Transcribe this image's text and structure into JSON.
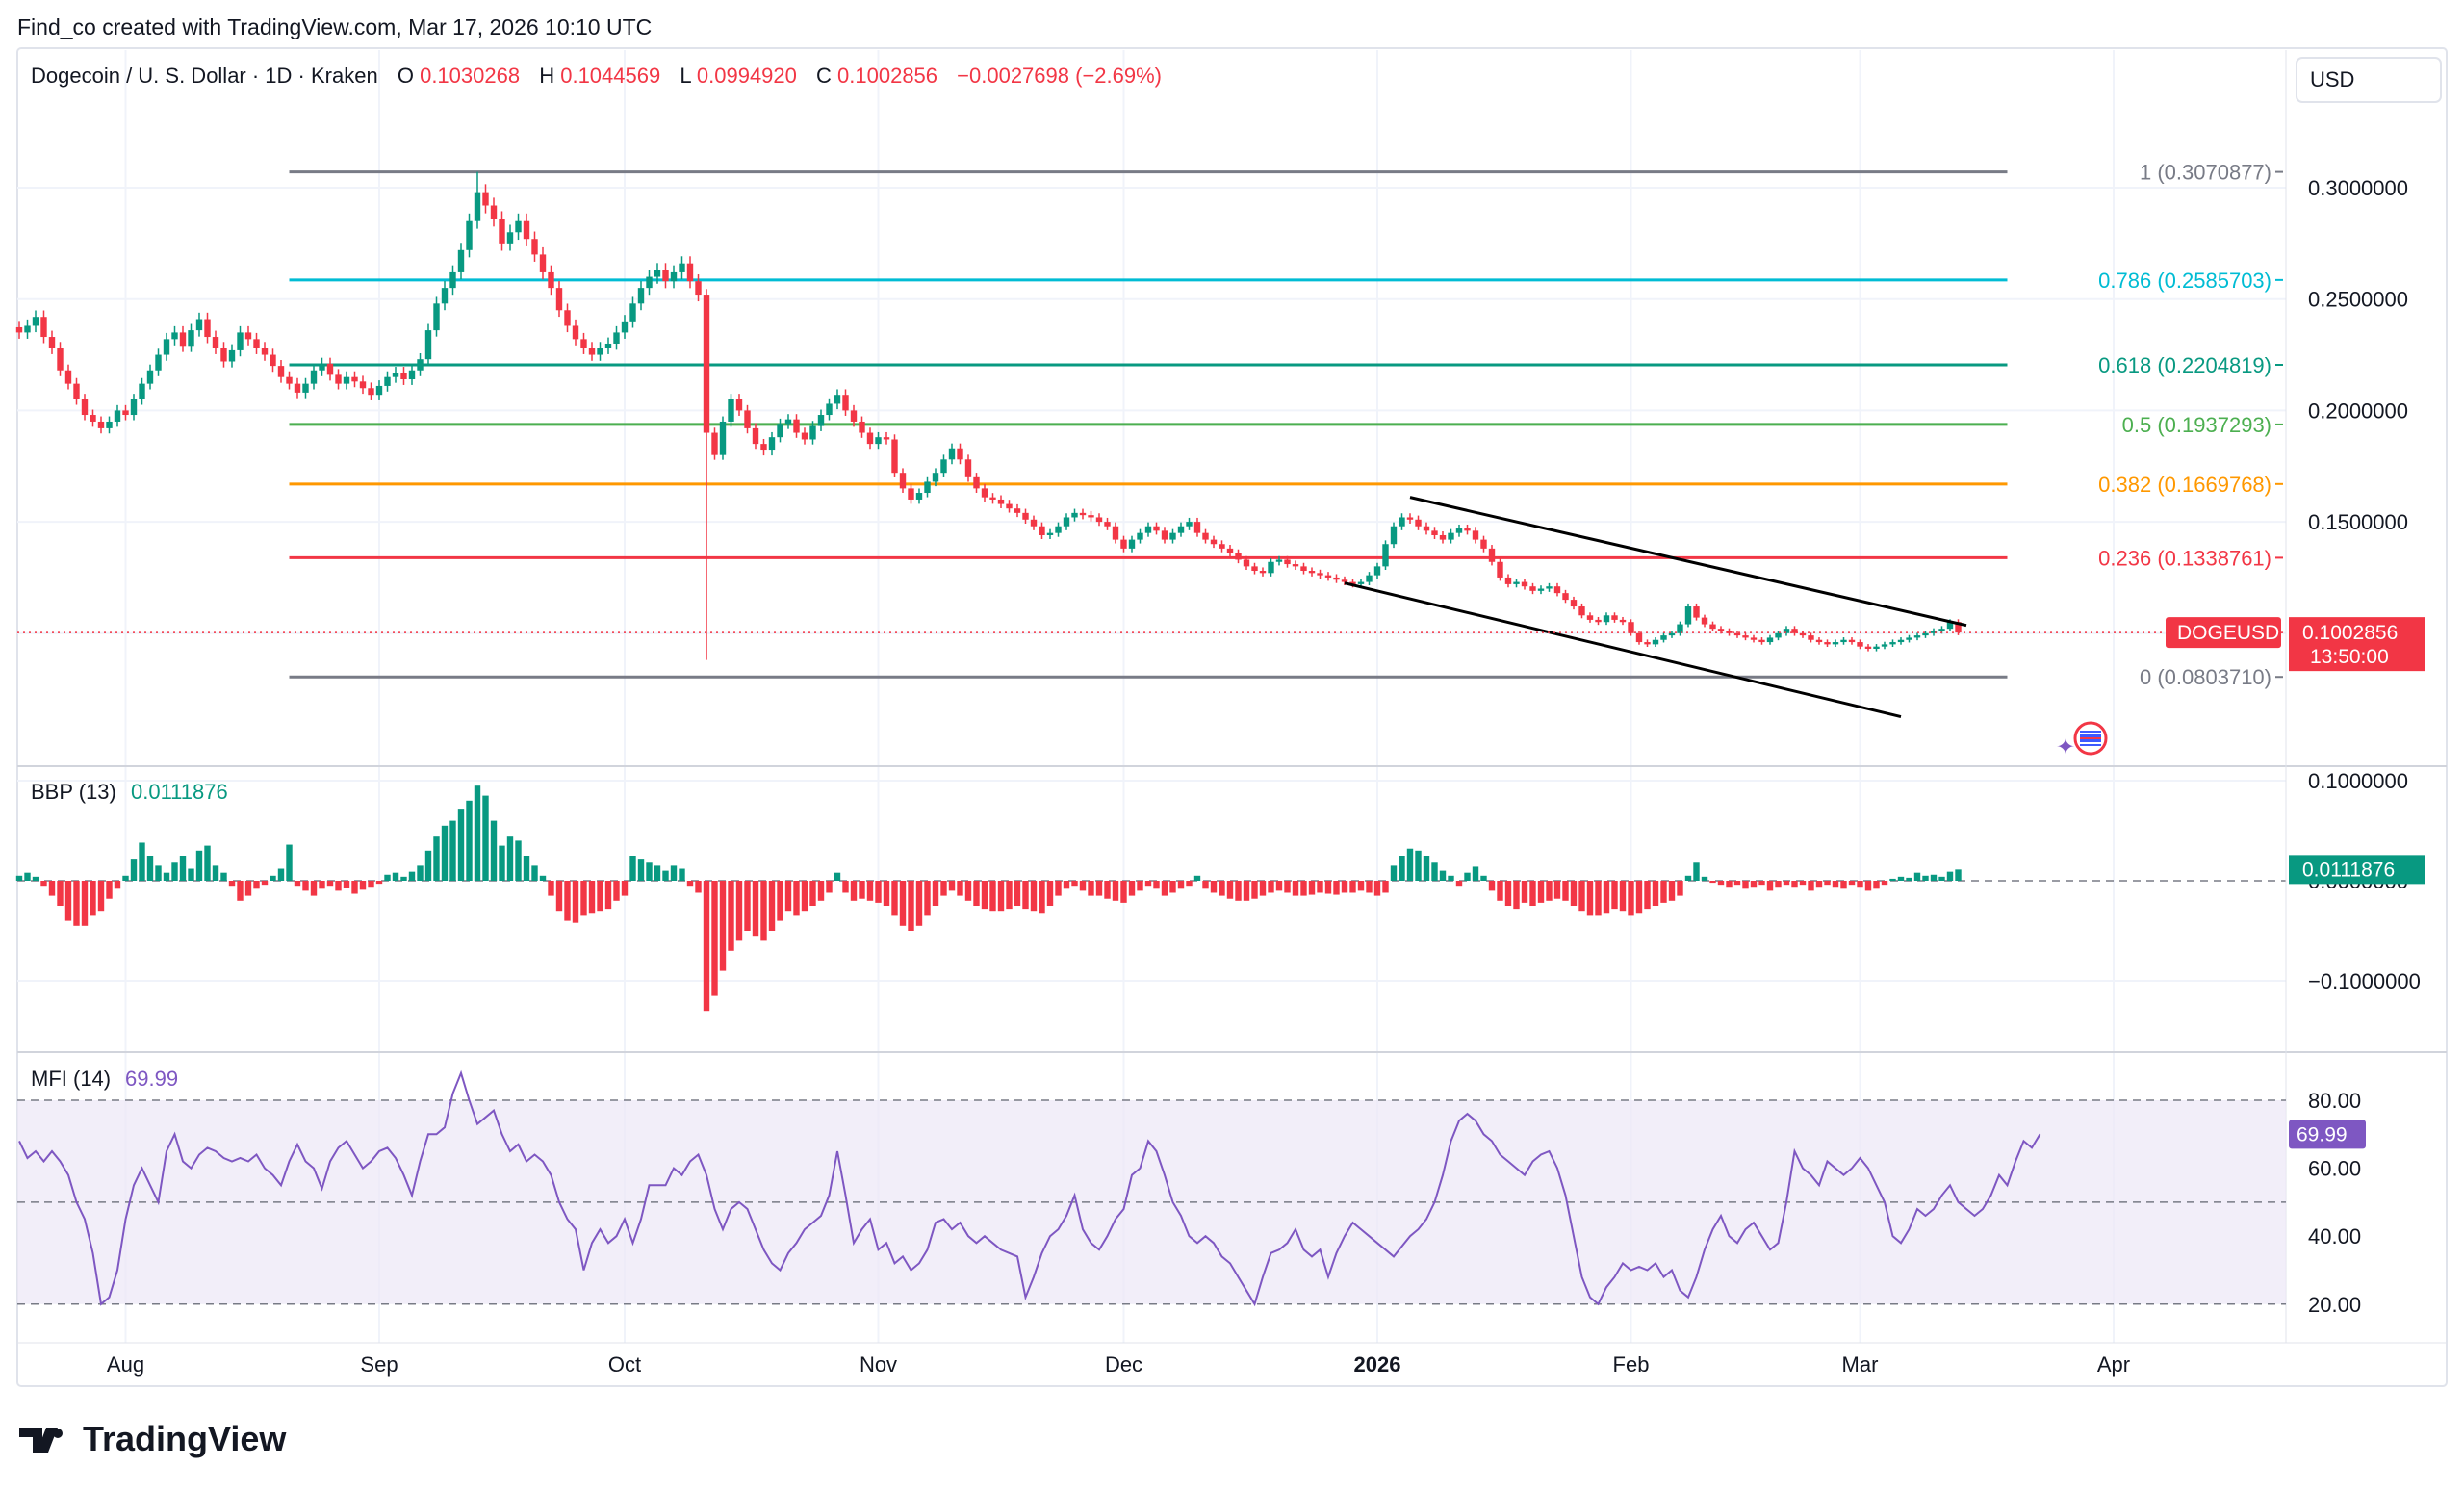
{
  "header_text": "Find_co created with TradingView.com, Mar 17, 2026 10:10 UTC",
  "legend": {
    "symbol": "Dogecoin / U. S. Dollar · 1D · Kraken",
    "o_label": "O",
    "o_value": "0.1030268",
    "h_label": "H",
    "h_value": "0.1044569",
    "l_label": "L",
    "l_value": "0.0994920",
    "c_label": "C",
    "c_value": "0.1002856",
    "change": "−0.0027698 (−2.69%)"
  },
  "currency_button": "USD",
  "footer_logo": "TradingView",
  "colors": {
    "up": "#089981",
    "down": "#f23645",
    "grid": "#f0f3fa",
    "text": "#131722",
    "mfi": "#7e57c2",
    "mfi_band": "#ede7f6",
    "fib_0": "#787b86",
    "fib_236": "#f23645",
    "fib_382": "#ff9800",
    "fib_5": "#4caf50",
    "fib_618": "#089981",
    "fib_786": "#00bcd4",
    "fib_1": "#787b86"
  },
  "chart_data": [
    {
      "type": "candlestick",
      "title": "Dogecoin / U. S. Dollar · 1D · Kraken",
      "x_labels": [
        "Aug",
        "Sep",
        "Oct",
        "Nov",
        "Dec",
        "2026",
        "Feb",
        "Mar",
        "Apr"
      ],
      "y_ticks": [
        "0.3000000",
        "0.2500000",
        "0.2000000",
        "0.1500000"
      ],
      "ylim": [
        0.06,
        0.33
      ],
      "last_price_label": "DOGEUSD",
      "last_price": "0.1002856",
      "countdown": "13:50:00",
      "fibonacci": [
        {
          "label": "1 (0.3070877)",
          "value": 0.3070877
        },
        {
          "label": "0.786 (0.2585703)",
          "value": 0.2585703
        },
        {
          "label": "0.618 (0.2204819)",
          "value": 0.2204819
        },
        {
          "label": "0.5 (0.1937293)",
          "value": 0.1937293
        },
        {
          "label": "0.382 (0.1669768)",
          "value": 0.1669768
        },
        {
          "label": "0.236 (0.1338761)",
          "value": 0.1338761
        },
        {
          "label": "0 (0.0803710)",
          "value": 0.080371
        }
      ],
      "channel": [
        {
          "from": [
            "2026-01-05",
            0.161
          ],
          "to": [
            "2026-03-14",
            0.1035
          ]
        },
        {
          "from": [
            "2025-12-28",
            0.1225
          ],
          "to": [
            "2026-03-06",
            0.0625
          ]
        }
      ],
      "close_series": [
        0.235,
        0.238,
        0.242,
        0.233,
        0.228,
        0.218,
        0.212,
        0.205,
        0.198,
        0.195,
        0.192,
        0.195,
        0.2,
        0.198,
        0.205,
        0.212,
        0.218,
        0.225,
        0.232,
        0.235,
        0.229,
        0.236,
        0.241,
        0.233,
        0.228,
        0.222,
        0.227,
        0.235,
        0.232,
        0.228,
        0.225,
        0.22,
        0.215,
        0.212,
        0.208,
        0.212,
        0.218,
        0.221,
        0.216,
        0.212,
        0.215,
        0.213,
        0.21,
        0.207,
        0.211,
        0.215,
        0.217,
        0.214,
        0.218,
        0.223,
        0.236,
        0.248,
        0.255,
        0.262,
        0.272,
        0.285,
        0.298,
        0.292,
        0.286,
        0.275,
        0.28,
        0.285,
        0.277,
        0.27,
        0.262,
        0.255,
        0.245,
        0.238,
        0.232,
        0.228,
        0.225,
        0.228,
        0.23,
        0.235,
        0.24,
        0.248,
        0.255,
        0.26,
        0.263,
        0.258,
        0.262,
        0.266,
        0.258,
        0.252,
        0.19,
        0.18,
        0.195,
        0.205,
        0.2,
        0.192,
        0.185,
        0.182,
        0.188,
        0.194,
        0.196,
        0.19,
        0.187,
        0.193,
        0.198,
        0.203,
        0.207,
        0.2,
        0.195,
        0.19,
        0.185,
        0.188,
        0.187,
        0.172,
        0.165,
        0.16,
        0.163,
        0.168,
        0.172,
        0.178,
        0.183,
        0.178,
        0.17,
        0.165,
        0.161,
        0.16,
        0.158,
        0.156,
        0.154,
        0.151,
        0.148,
        0.144,
        0.145,
        0.148,
        0.152,
        0.154,
        0.153,
        0.152,
        0.15,
        0.148,
        0.142,
        0.138,
        0.142,
        0.145,
        0.148,
        0.146,
        0.142,
        0.145,
        0.148,
        0.15,
        0.145,
        0.142,
        0.14,
        0.138,
        0.136,
        0.133,
        0.13,
        0.128,
        0.127,
        0.132,
        0.133,
        0.131,
        0.13,
        0.128,
        0.127,
        0.126,
        0.125,
        0.124,
        0.123,
        0.122,
        0.123,
        0.126,
        0.13,
        0.14,
        0.148,
        0.152,
        0.151,
        0.148,
        0.146,
        0.144,
        0.142,
        0.145,
        0.147,
        0.146,
        0.142,
        0.138,
        0.132,
        0.125,
        0.122,
        0.123,
        0.121,
        0.119,
        0.12,
        0.121,
        0.118,
        0.115,
        0.112,
        0.108,
        0.106,
        0.105,
        0.108,
        0.106,
        0.105,
        0.1,
        0.096,
        0.095,
        0.097,
        0.099,
        0.1,
        0.104,
        0.112,
        0.107,
        0.104,
        0.102,
        0.101,
        0.1,
        0.099,
        0.098,
        0.097,
        0.096,
        0.098,
        0.1,
        0.102,
        0.1,
        0.099,
        0.097,
        0.096,
        0.095,
        0.096,
        0.097,
        0.096,
        0.094,
        0.093,
        0.094,
        0.095,
        0.096,
        0.097,
        0.098,
        0.099,
        0.1,
        0.101,
        0.102,
        0.105,
        0.1003
      ]
    },
    {
      "type": "bar",
      "title": "BBP (13)",
      "value_label": "0.0111876",
      "y_ticks": [
        "0.1000000",
        "0.0000000",
        "−0.1000000"
      ],
      "ylim": [
        -0.14,
        0.12
      ],
      "values": [
        0.005,
        0.008,
        0.004,
        -0.005,
        -0.015,
        -0.025,
        -0.04,
        -0.045,
        -0.045,
        -0.035,
        -0.03,
        -0.018,
        -0.008,
        0.005,
        0.022,
        0.038,
        0.025,
        0.015,
        0.008,
        0.018,
        0.025,
        0.012,
        0.03,
        0.035,
        0.015,
        0.008,
        -0.005,
        -0.02,
        -0.015,
        -0.008,
        -0.004,
        0.005,
        0.012,
        0.036,
        -0.005,
        -0.01,
        -0.015,
        -0.008,
        -0.005,
        -0.01,
        -0.007,
        -0.013,
        -0.009,
        -0.006,
        -0.003,
        0.006,
        0.008,
        0.004,
        0.009,
        0.015,
        0.03,
        0.045,
        0.055,
        0.06,
        0.072,
        0.08,
        0.095,
        0.085,
        0.06,
        0.035,
        0.045,
        0.04,
        0.025,
        0.015,
        0.005,
        -0.015,
        -0.03,
        -0.04,
        -0.042,
        -0.035,
        -0.032,
        -0.03,
        -0.028,
        -0.02,
        -0.015,
        0.025,
        0.022,
        0.018,
        0.015,
        0.01,
        0.015,
        0.012,
        -0.005,
        -0.012,
        -0.13,
        -0.115,
        -0.09,
        -0.07,
        -0.06,
        -0.05,
        -0.055,
        -0.06,
        -0.05,
        -0.04,
        -0.03,
        -0.035,
        -0.03,
        -0.025,
        -0.02,
        -0.012,
        0.008,
        -0.012,
        -0.02,
        -0.018,
        -0.02,
        -0.022,
        -0.025,
        -0.035,
        -0.045,
        -0.05,
        -0.045,
        -0.035,
        -0.025,
        -0.015,
        -0.01,
        -0.015,
        -0.02,
        -0.025,
        -0.028,
        -0.03,
        -0.03,
        -0.028,
        -0.025,
        -0.028,
        -0.03,
        -0.032,
        -0.025,
        -0.015,
        -0.008,
        -0.005,
        -0.01,
        -0.015,
        -0.015,
        -0.018,
        -0.02,
        -0.022,
        -0.015,
        -0.01,
        -0.005,
        -0.008,
        -0.015,
        -0.012,
        -0.008,
        -0.005,
        0.005,
        -0.008,
        -0.012,
        -0.015,
        -0.018,
        -0.02,
        -0.02,
        -0.018,
        -0.015,
        -0.012,
        -0.01,
        -0.012,
        -0.015,
        -0.015,
        -0.014,
        -0.012,
        -0.013,
        -0.014,
        -0.012,
        -0.012,
        -0.01,
        -0.012,
        -0.015,
        -0.012,
        0.015,
        0.025,
        0.032,
        0.03,
        0.025,
        0.018,
        0.01,
        0.005,
        -0.005,
        0.008,
        0.014,
        0.005,
        -0.01,
        -0.02,
        -0.025,
        -0.028,
        -0.022,
        -0.025,
        -0.022,
        -0.02,
        -0.018,
        -0.02,
        -0.025,
        -0.03,
        -0.035,
        -0.035,
        -0.032,
        -0.028,
        -0.03,
        -0.035,
        -0.032,
        -0.028,
        -0.025,
        -0.022,
        -0.02,
        -0.015,
        0.005,
        0.018,
        0.004,
        -0.002,
        -0.004,
        -0.006,
        -0.004,
        -0.008,
        -0.006,
        -0.004,
        -0.01,
        -0.006,
        -0.004,
        -0.006,
        -0.004,
        -0.01,
        -0.006,
        -0.004,
        -0.006,
        -0.008,
        -0.004,
        -0.006,
        -0.01,
        -0.008,
        -0.004,
        0.002,
        0.004,
        0.003,
        0.008,
        0.005,
        0.006,
        0.004,
        0.009,
        0.0111876
      ]
    },
    {
      "type": "line",
      "title": "MFI (14)",
      "value_label": "69.99",
      "y_ticks": [
        "80.00",
        "60.00",
        "40.00",
        "20.00"
      ],
      "ylim": [
        14,
        92
      ],
      "band": [
        20,
        80
      ],
      "midline": 50,
      "values": [
        68,
        63,
        65,
        62,
        65,
        62,
        58,
        50,
        45,
        35,
        20,
        22,
        30,
        45,
        55,
        60,
        55,
        50,
        65,
        70,
        62,
        60,
        64,
        66,
        65,
        63,
        62,
        63,
        62,
        64,
        60,
        58,
        55,
        62,
        67,
        62,
        60,
        54,
        62,
        66,
        68,
        64,
        60,
        62,
        65,
        66,
        63,
        58,
        52,
        62,
        70,
        70,
        72,
        82,
        88,
        80,
        73,
        75,
        77,
        70,
        65,
        67,
        62,
        64,
        62,
        58,
        50,
        45,
        42,
        30,
        38,
        42,
        38,
        40,
        45,
        38,
        45,
        55,
        55,
        55,
        60,
        58,
        62,
        64,
        58,
        48,
        42,
        48,
        50,
        48,
        42,
        36,
        32,
        30,
        35,
        38,
        42,
        44,
        46,
        52,
        65,
        52,
        38,
        42,
        45,
        36,
        38,
        32,
        34,
        30,
        32,
        36,
        44,
        45,
        42,
        44,
        40,
        38,
        40,
        38,
        36,
        35,
        34,
        22,
        28,
        35,
        40,
        42,
        46,
        52,
        42,
        38,
        36,
        40,
        45,
        48,
        58,
        60,
        68,
        65,
        58,
        50,
        46,
        40,
        38,
        40,
        38,
        34,
        32,
        28,
        24,
        20,
        28,
        35,
        36,
        38,
        42,
        36,
        34,
        36,
        28,
        35,
        40,
        44,
        42,
        40,
        38,
        36,
        34,
        37,
        40,
        42,
        45,
        50,
        58,
        68,
        74,
        76,
        74,
        70,
        68,
        64,
        62,
        60,
        58,
        62,
        64,
        65,
        60,
        52,
        40,
        28,
        22,
        20,
        25,
        28,
        32,
        30,
        31,
        30,
        32,
        28,
        30,
        24,
        22,
        28,
        36,
        42,
        46,
        40,
        38,
        42,
        44,
        40,
        36,
        38,
        50,
        65,
        60,
        58,
        55,
        62,
        60,
        58,
        60,
        63,
        60,
        55,
        50,
        40,
        38,
        42,
        48,
        46,
        48,
        52,
        55,
        50,
        48,
        46,
        48,
        52,
        58,
        55,
        62,
        68,
        66,
        70
      ]
    }
  ]
}
